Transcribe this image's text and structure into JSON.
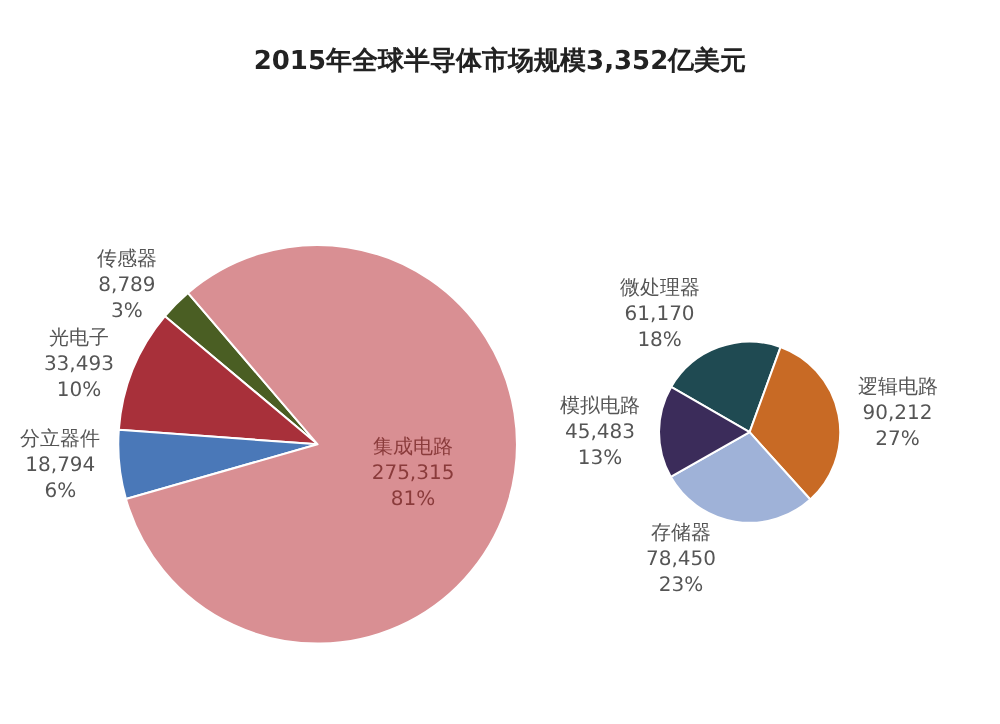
{
  "chart_data": [
    {
      "type": "pie",
      "title": "2015年全球半导体市场规模3,352亿美元",
      "categories": [
        "传感器",
        "光电子",
        "分立器件",
        "集成电路"
      ],
      "values": [
        8789,
        33493,
        18794,
        275315
      ],
      "colors": [
        "#4a5e23",
        "#a8303a",
        "#4a78b8",
        "#d98f93"
      ],
      "value_labels": [
        "8,789\n3%",
        "33,493\n10%",
        "18,794\n6%",
        "275,315\n81%"
      ],
      "legend": false
    },
    {
      "type": "pie",
      "categories": [
        "微处理器",
        "逻辑电路",
        "存储器",
        "模拟电路"
      ],
      "values": [
        61170,
        90212,
        78450,
        45483
      ],
      "colors": [
        "#1f4a52",
        "#c86a25",
        "#9fb2d8",
        "#3b2c5a"
      ],
      "value_labels": [
        "61,170\n18%",
        "90,212\n27%",
        "78,450\n23%",
        "45,483\n13%"
      ],
      "legend": false
    }
  ]
}
